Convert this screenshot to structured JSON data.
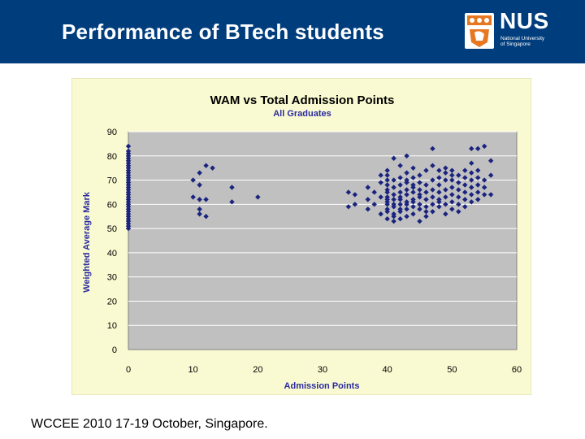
{
  "slide": {
    "title": "Performance of BTech students",
    "footer": "WCCEE 2010 17-19 October, Singapore."
  },
  "logo": {
    "text": "NUS",
    "subtitle_line1": "National University",
    "subtitle_line2": "of Singapore",
    "colors": {
      "header_bg": "#003d7c",
      "shield_orange": "#e87722"
    }
  },
  "chart_data": {
    "type": "scatter",
    "title": "WAM vs Total Admission Points",
    "subtitle": "All Graduates",
    "xlabel": "Admission Points",
    "ylabel": "Weighted Average Mark",
    "xlim": [
      0,
      60
    ],
    "ylim": [
      0,
      90
    ],
    "xticks": [
      0,
      10,
      20,
      30,
      40,
      50,
      60
    ],
    "yticks": [
      0,
      10,
      20,
      30,
      40,
      50,
      60,
      70,
      80,
      90
    ],
    "grid": "horizontal",
    "legend": "none",
    "colors": {
      "marker": "#1a237e",
      "plot_bg": "#c0c0c0",
      "chart_bg": "#fafad2",
      "title": "#000080",
      "axis_label": "#2a2aa0"
    },
    "series": [
      {
        "points": [
          [
            0,
            50
          ],
          [
            0,
            51
          ],
          [
            0,
            52
          ],
          [
            0,
            53
          ],
          [
            0,
            54
          ],
          [
            0,
            55
          ],
          [
            0,
            56
          ],
          [
            0,
            57
          ],
          [
            0,
            58
          ],
          [
            0,
            59
          ],
          [
            0,
            60
          ],
          [
            0,
            61
          ],
          [
            0,
            62
          ],
          [
            0,
            63
          ],
          [
            0,
            64
          ],
          [
            0,
            65
          ],
          [
            0,
            66
          ],
          [
            0,
            67
          ],
          [
            0,
            68
          ],
          [
            0,
            69
          ],
          [
            0,
            70
          ],
          [
            0,
            71
          ],
          [
            0,
            72
          ],
          [
            0,
            73
          ],
          [
            0,
            74
          ],
          [
            0,
            75
          ],
          [
            0,
            76
          ],
          [
            0,
            77
          ],
          [
            0,
            78
          ],
          [
            0,
            79
          ],
          [
            0,
            80
          ],
          [
            0,
            81
          ],
          [
            0,
            82
          ],
          [
            0,
            84
          ],
          [
            10,
            63
          ],
          [
            10,
            70
          ],
          [
            11,
            73
          ],
          [
            11,
            68
          ],
          [
            11,
            62
          ],
          [
            11,
            58
          ],
          [
            11,
            56
          ],
          [
            12,
            76
          ],
          [
            12,
            62
          ],
          [
            12,
            55
          ],
          [
            13,
            75
          ],
          [
            16,
            67
          ],
          [
            16,
            61
          ],
          [
            20,
            63
          ],
          [
            34,
            65
          ],
          [
            34,
            59
          ],
          [
            35,
            64
          ],
          [
            35,
            60
          ],
          [
            37,
            62
          ],
          [
            37,
            58
          ],
          [
            37,
            67
          ],
          [
            38,
            60
          ],
          [
            38,
            65
          ],
          [
            39,
            69
          ],
          [
            39,
            63
          ],
          [
            39,
            56
          ],
          [
            39,
            72
          ],
          [
            40,
            54
          ],
          [
            40,
            58
          ],
          [
            40,
            61
          ],
          [
            40,
            63
          ],
          [
            40,
            66
          ],
          [
            40,
            70
          ],
          [
            40,
            74
          ],
          [
            40,
            57
          ],
          [
            40,
            60
          ],
          [
            40,
            62
          ],
          [
            40,
            65
          ],
          [
            40,
            68
          ],
          [
            40,
            72
          ],
          [
            41,
            53
          ],
          [
            41,
            56
          ],
          [
            41,
            59
          ],
          [
            41,
            62
          ],
          [
            41,
            64
          ],
          [
            41,
            67
          ],
          [
            41,
            70
          ],
          [
            41,
            79
          ],
          [
            41,
            55
          ],
          [
            41,
            60
          ],
          [
            42,
            54
          ],
          [
            42,
            57
          ],
          [
            42,
            60
          ],
          [
            42,
            62
          ],
          [
            42,
            65
          ],
          [
            42,
            68
          ],
          [
            42,
            71
          ],
          [
            42,
            76
          ],
          [
            42,
            58
          ],
          [
            42,
            63
          ],
          [
            43,
            55
          ],
          [
            43,
            58
          ],
          [
            43,
            61
          ],
          [
            43,
            64
          ],
          [
            43,
            66
          ],
          [
            43,
            69
          ],
          [
            43,
            73
          ],
          [
            43,
            80
          ],
          [
            43,
            60
          ],
          [
            43,
            70
          ],
          [
            44,
            56
          ],
          [
            44,
            59
          ],
          [
            44,
            62
          ],
          [
            44,
            65
          ],
          [
            44,
            67
          ],
          [
            44,
            71
          ],
          [
            44,
            75
          ],
          [
            44,
            61
          ],
          [
            44,
            68
          ],
          [
            45,
            53
          ],
          [
            45,
            58
          ],
          [
            45,
            60
          ],
          [
            45,
            63
          ],
          [
            45,
            66
          ],
          [
            45,
            69
          ],
          [
            45,
            72
          ],
          [
            45,
            64
          ],
          [
            46,
            55
          ],
          [
            46,
            59
          ],
          [
            46,
            62
          ],
          [
            46,
            65
          ],
          [
            46,
            68
          ],
          [
            46,
            74
          ],
          [
            46,
            57
          ],
          [
            47,
            57
          ],
          [
            47,
            60
          ],
          [
            47,
            63
          ],
          [
            47,
            66
          ],
          [
            47,
            70
          ],
          [
            47,
            76
          ],
          [
            47,
            83
          ],
          [
            48,
            59
          ],
          [
            48,
            62
          ],
          [
            48,
            65
          ],
          [
            48,
            68
          ],
          [
            48,
            71
          ],
          [
            48,
            74
          ],
          [
            48,
            61
          ],
          [
            49,
            56
          ],
          [
            49,
            60
          ],
          [
            49,
            63
          ],
          [
            49,
            66
          ],
          [
            49,
            70
          ],
          [
            49,
            73
          ],
          [
            49,
            75
          ],
          [
            50,
            58
          ],
          [
            50,
            61
          ],
          [
            50,
            64
          ],
          [
            50,
            67
          ],
          [
            50,
            70
          ],
          [
            50,
            74
          ],
          [
            50,
            72
          ],
          [
            51,
            60
          ],
          [
            51,
            63
          ],
          [
            51,
            66
          ],
          [
            51,
            69
          ],
          [
            51,
            72
          ],
          [
            51,
            57
          ],
          [
            52,
            62
          ],
          [
            52,
            65
          ],
          [
            52,
            68
          ],
          [
            52,
            71
          ],
          [
            52,
            74
          ],
          [
            52,
            59
          ],
          [
            53,
            64
          ],
          [
            53,
            67
          ],
          [
            53,
            70
          ],
          [
            53,
            73
          ],
          [
            53,
            77
          ],
          [
            53,
            83
          ],
          [
            53,
            61
          ],
          [
            54,
            65
          ],
          [
            54,
            68
          ],
          [
            54,
            71
          ],
          [
            54,
            74
          ],
          [
            54,
            83
          ],
          [
            54,
            62
          ],
          [
            55,
            67
          ],
          [
            55,
            70
          ],
          [
            55,
            84
          ],
          [
            55,
            64
          ],
          [
            56,
            72
          ],
          [
            56,
            78
          ],
          [
            56,
            64
          ]
        ]
      }
    ]
  }
}
